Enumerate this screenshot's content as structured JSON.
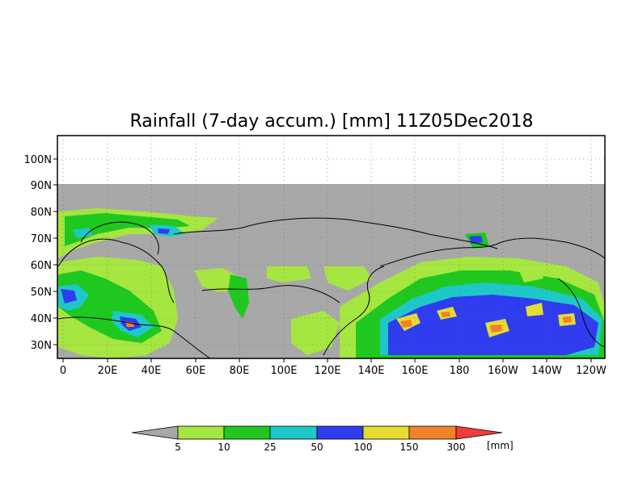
{
  "title": "Rainfall (7-day accum.) [mm] 11Z05Dec2018",
  "colors": {
    "no_data": "#a8a8a8",
    "land_outline": "#000000",
    "light_green": "#a6e640",
    "green": "#1fc81f",
    "cyan": "#1ec8c8",
    "blue": "#2f3cf0",
    "yellow": "#e6dc32",
    "orange": "#f08228",
    "red": "#f03c3c"
  },
  "lat_ticks": [
    "100N",
    "90N",
    "80N",
    "70N",
    "60N",
    "50N",
    "40N",
    "30N"
  ],
  "lon_ticks": [
    "0",
    "20E",
    "40E",
    "60E",
    "80E",
    "100E",
    "120E",
    "140E",
    "160E",
    "180",
    "160W",
    "140W",
    "120W"
  ],
  "colorbar": {
    "labels": [
      "5",
      "10",
      "25",
      "50",
      "100",
      "150",
      "300"
    ],
    "unit": "[mm]"
  }
}
